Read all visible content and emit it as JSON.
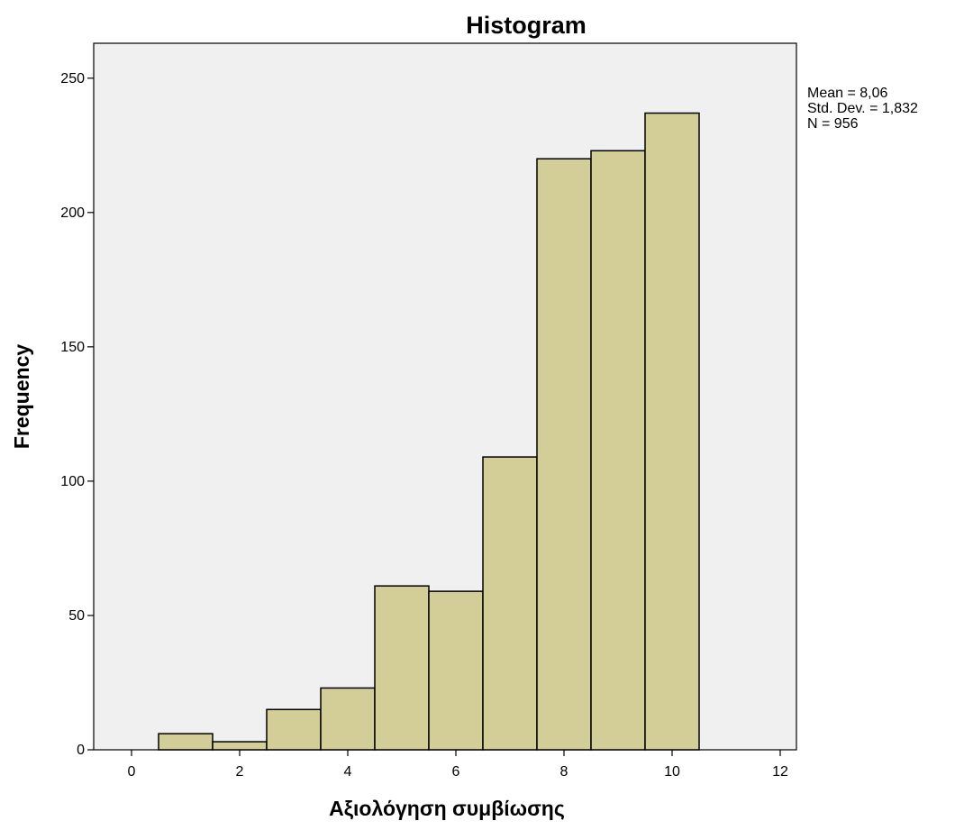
{
  "chart_data": {
    "type": "bar",
    "title": "Histogram",
    "xlabel": "Αξιολόγηση συμβίωσης",
    "ylabel": "Frequency",
    "xlim": [
      -0.7,
      12.3
    ],
    "ylim": [
      0,
      263
    ],
    "xticks": [
      "0",
      "2",
      "4",
      "6",
      "8",
      "10",
      "12"
    ],
    "yticks": [
      "0",
      "50",
      "100",
      "150",
      "200",
      "250"
    ],
    "bin_width": 1,
    "bins": [
      {
        "center": 1,
        "value": 6
      },
      {
        "center": 2,
        "value": 3
      },
      {
        "center": 3,
        "value": 15
      },
      {
        "center": 4,
        "value": 23
      },
      {
        "center": 5,
        "value": 61
      },
      {
        "center": 6,
        "value": 59
      },
      {
        "center": 7,
        "value": 109
      },
      {
        "center": 8,
        "value": 220
      },
      {
        "center": 9,
        "value": 223
      },
      {
        "center": 10,
        "value": 237
      }
    ],
    "stats": [
      "Mean = 8,06",
      "Std. Dev. = 1,832",
      "N = 956"
    ],
    "grid": false,
    "legend": "none",
    "colors": {
      "bar_fill": "#d3cd98",
      "plot_background": "#f0f0f0",
      "outline": "#000000"
    }
  }
}
